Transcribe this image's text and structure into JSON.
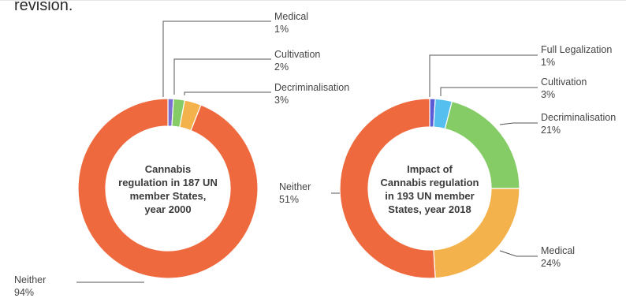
{
  "header": {
    "fragment": "revision."
  },
  "chart_data": [
    {
      "type": "pie",
      "donut": true,
      "title": [
        "Cannabis",
        "regulation in 187 UN",
        "member States,",
        "year 2000"
      ],
      "series": [
        {
          "label": "Medical",
          "value": 1,
          "display": "1%",
          "color": "#7b6fd0"
        },
        {
          "label": "Cultivation",
          "value": 2,
          "display": "2%",
          "color": "#86cc66"
        },
        {
          "label": "Decriminalisation",
          "value": 3,
          "display": "3%",
          "color": "#f4b24c"
        },
        {
          "label": "Neither",
          "value": 94,
          "display": "94%",
          "color": "#ee6a3e"
        }
      ]
    },
    {
      "type": "pie",
      "donut": true,
      "title": [
        "Impact of",
        "Cannabis regulation",
        "in 193 UN member",
        "States, year 2018"
      ],
      "series": [
        {
          "label": "Full Legalization",
          "value": 1,
          "display": "1%",
          "color": "#5b5bd6"
        },
        {
          "label": "Cultivation",
          "value": 3,
          "display": "3%",
          "color": "#55c0f0"
        },
        {
          "label": "Decriminalisation",
          "value": 21,
          "display": "21%",
          "color": "#86cc66"
        },
        {
          "label": "Medical",
          "value": 24,
          "display": "24%",
          "color": "#f4b24c"
        },
        {
          "label": "Neither",
          "value": 51,
          "display": "51%",
          "color": "#ee6a3e"
        }
      ]
    }
  ]
}
